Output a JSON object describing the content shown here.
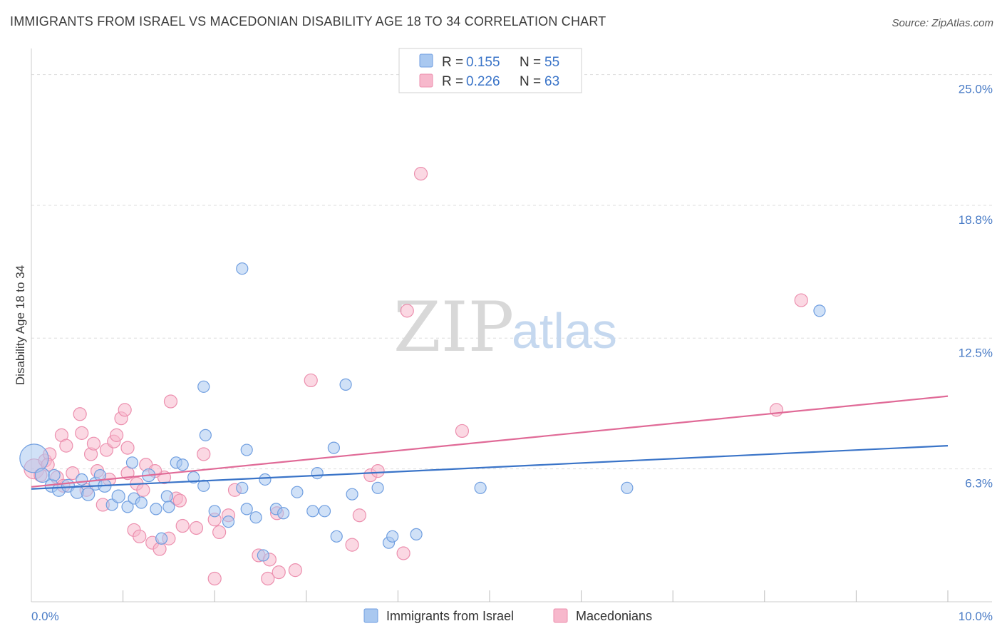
{
  "title": "IMMIGRANTS FROM ISRAEL VS MACEDONIAN DISABILITY AGE 18 TO 34 CORRELATION CHART",
  "source": "Source: ZipAtlas.com",
  "watermark": {
    "zip": "ZIP",
    "atlas": "atlas"
  },
  "colors": {
    "blue_fill": "#a9c8f0",
    "blue_stroke": "#6f9ee0",
    "blue_line": "#3a74c8",
    "pink_fill": "#f7b8cc",
    "pink_stroke": "#ec8fae",
    "pink_line": "#e06a97",
    "tick_label": "#4a7cc6",
    "grid": "#dddddd"
  },
  "legend": {
    "rows": [
      {
        "r_label": "R = ",
        "r_value": "0.155",
        "n_label": "N = ",
        "n_value": "55",
        "color": "blue"
      },
      {
        "r_label": "R = ",
        "r_value": "0.226",
        "n_label": "N = ",
        "n_value": "63",
        "color": "pink"
      }
    ]
  },
  "bottom_legend": [
    {
      "label": "Immigrants from Israel",
      "color": "blue"
    },
    {
      "label": "Macedonians",
      "color": "pink"
    }
  ],
  "chart_data": {
    "type": "scatter",
    "title": "IMMIGRANTS FROM ISRAEL VS MACEDONIAN DISABILITY AGE 18 TO 34 CORRELATION CHART",
    "xlabel": "",
    "ylabel": "Disability Age 18 to 34",
    "xlim": [
      0,
      10
    ],
    "ylim": [
      0,
      25.9
    ],
    "x_tick_labels": [
      {
        "value": 0,
        "label": "0.0%"
      },
      {
        "value": 10,
        "label": "10.0%"
      }
    ],
    "y_tick_labels": [
      {
        "value": 6.3,
        "label": "6.3%"
      },
      {
        "value": 12.5,
        "label": "12.5%"
      },
      {
        "value": 18.8,
        "label": "18.8%"
      },
      {
        "value": 25.0,
        "label": "25.0%"
      }
    ],
    "series": [
      {
        "name": "Immigrants from Israel",
        "color": "blue",
        "trend": {
          "x": [
            0,
            10
          ],
          "y": [
            5.35,
            7.4
          ]
        },
        "points": [
          [
            0.03,
            6.8,
            20
          ],
          [
            0.12,
            6.0,
            10
          ],
          [
            0.22,
            5.5,
            9
          ],
          [
            0.3,
            5.3,
            9
          ],
          [
            0.4,
            5.5,
            9
          ],
          [
            0.5,
            5.2,
            9
          ],
          [
            0.55,
            5.8,
            8
          ],
          [
            0.62,
            5.1,
            9
          ],
          [
            0.7,
            5.6,
            9
          ],
          [
            0.8,
            5.5,
            9
          ],
          [
            0.88,
            4.6,
            8
          ],
          [
            0.95,
            5.0,
            9
          ],
          [
            1.05,
            4.5,
            8
          ],
          [
            1.12,
            4.9,
            8
          ],
          [
            1.2,
            4.7,
            8
          ],
          [
            1.28,
            6.0,
            9
          ],
          [
            1.36,
            4.4,
            8
          ],
          [
            1.48,
            5.0,
            8
          ],
          [
            1.58,
            6.6,
            8
          ],
          [
            1.77,
            5.9,
            8
          ],
          [
            1.88,
            5.5,
            8
          ],
          [
            2.0,
            4.3,
            8
          ],
          [
            2.15,
            3.8,
            8
          ],
          [
            2.3,
            5.4,
            8
          ],
          [
            2.45,
            4.0,
            8
          ],
          [
            2.55,
            5.8,
            8
          ],
          [
            2.67,
            4.4,
            8
          ],
          [
            2.75,
            4.2,
            8
          ],
          [
            2.9,
            5.2,
            8
          ],
          [
            3.07,
            4.3,
            8
          ],
          [
            3.12,
            6.1,
            8
          ],
          [
            3.2,
            4.3,
            8
          ],
          [
            3.33,
            3.1,
            8
          ],
          [
            3.5,
            5.1,
            8
          ],
          [
            3.78,
            5.4,
            8
          ],
          [
            3.9,
            2.8,
            8
          ],
          [
            3.94,
            3.1,
            8
          ],
          [
            4.2,
            3.2,
            8
          ],
          [
            4.9,
            5.4,
            8
          ],
          [
            1.1,
            6.6,
            8
          ],
          [
            1.5,
            4.5,
            8
          ],
          [
            0.75,
            6.0,
            8
          ],
          [
            1.65,
            6.5,
            8
          ],
          [
            2.35,
            4.4,
            8
          ],
          [
            2.53,
            2.2,
            8
          ],
          [
            1.88,
            10.2,
            8
          ],
          [
            2.3,
            15.8,
            8
          ],
          [
            3.43,
            10.3,
            8
          ],
          [
            8.6,
            13.8,
            8
          ],
          [
            6.5,
            5.4,
            8
          ],
          [
            3.3,
            7.3,
            8
          ],
          [
            1.9,
            7.9,
            8
          ],
          [
            2.35,
            7.2,
            8
          ],
          [
            0.25,
            6.0,
            8
          ],
          [
            1.42,
            3.0,
            8
          ]
        ]
      },
      {
        "name": "Macedonians",
        "color": "pink",
        "trend": {
          "x": [
            0,
            10
          ],
          "y": [
            5.45,
            9.75
          ]
        },
        "points": [
          [
            0.03,
            6.3,
            14
          ],
          [
            0.15,
            6.7,
            9
          ],
          [
            0.2,
            7.0,
            9
          ],
          [
            0.28,
            5.9,
            9
          ],
          [
            0.33,
            7.9,
            9
          ],
          [
            0.38,
            7.4,
            9
          ],
          [
            0.45,
            6.1,
            9
          ],
          [
            0.53,
            8.9,
            9
          ],
          [
            0.55,
            8.0,
            9
          ],
          [
            0.65,
            7.0,
            9
          ],
          [
            0.68,
            7.5,
            9
          ],
          [
            0.72,
            6.2,
            9
          ],
          [
            0.78,
            4.6,
            9
          ],
          [
            0.82,
            7.2,
            9
          ],
          [
            0.9,
            7.6,
            9
          ],
          [
            0.93,
            7.9,
            9
          ],
          [
            0.98,
            8.7,
            9
          ],
          [
            1.02,
            9.1,
            9
          ],
          [
            1.05,
            6.1,
            9
          ],
          [
            1.12,
            3.4,
            9
          ],
          [
            1.18,
            3.1,
            9
          ],
          [
            1.25,
            6.5,
            9
          ],
          [
            1.32,
            2.8,
            9
          ],
          [
            1.4,
            2.5,
            9
          ],
          [
            1.5,
            3.0,
            9
          ],
          [
            1.58,
            4.9,
            9
          ],
          [
            1.65,
            3.6,
            9
          ],
          [
            1.8,
            3.5,
            9
          ],
          [
            1.88,
            7.0,
            9
          ],
          [
            2.0,
            3.9,
            9
          ],
          [
            2.05,
            3.3,
            9
          ],
          [
            2.15,
            4.1,
            9
          ],
          [
            2.22,
            5.3,
            9
          ],
          [
            2.48,
            2.2,
            9
          ],
          [
            2.6,
            2.0,
            9
          ],
          [
            2.68,
            4.2,
            9
          ],
          [
            2.88,
            1.5,
            9
          ],
          [
            3.05,
            10.5,
            9
          ],
          [
            3.5,
            2.7,
            9
          ],
          [
            3.58,
            4.1,
            9
          ],
          [
            3.7,
            6.0,
            9
          ],
          [
            3.78,
            6.2,
            9
          ],
          [
            4.06,
            2.3,
            9
          ],
          [
            4.25,
            20.3,
            9
          ],
          [
            4.1,
            13.8,
            9
          ],
          [
            4.7,
            8.1,
            9
          ],
          [
            8.13,
            9.1,
            9
          ],
          [
            8.4,
            14.3,
            9
          ],
          [
            0.1,
            6.0,
            9
          ],
          [
            0.35,
            5.5,
            9
          ],
          [
            0.6,
            5.3,
            9
          ],
          [
            0.85,
            5.8,
            9
          ],
          [
            1.15,
            5.6,
            9
          ],
          [
            1.22,
            5.3,
            9
          ],
          [
            1.45,
            5.9,
            9
          ],
          [
            1.52,
            9.5,
            9
          ],
          [
            1.62,
            4.8,
            9
          ],
          [
            1.05,
            7.3,
            9
          ],
          [
            2.0,
            1.1,
            9
          ],
          [
            2.58,
            1.1,
            9
          ],
          [
            2.7,
            1.4,
            9
          ],
          [
            0.18,
            6.5,
            9
          ],
          [
            1.35,
            6.2,
            9
          ]
        ]
      }
    ]
  }
}
